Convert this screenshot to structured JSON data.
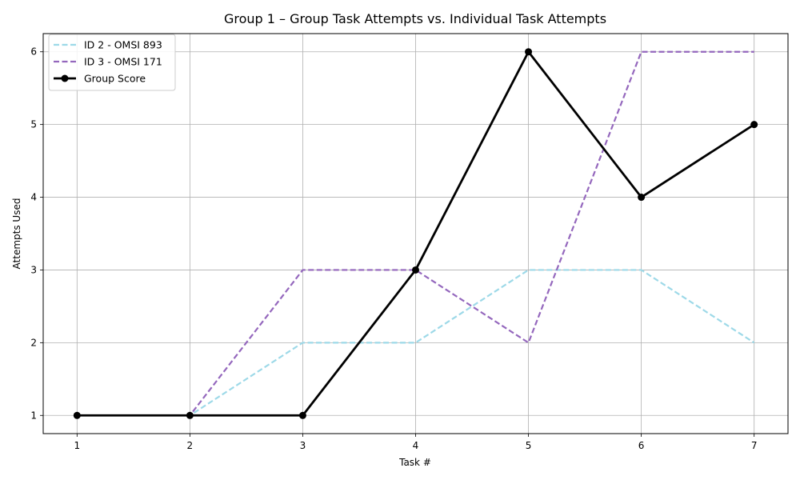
{
  "chart_data": {
    "type": "line",
    "title": "Group 1 – Group Task Attempts vs. Individual Task Attempts",
    "xlabel": "Task #",
    "ylabel": "Attempts Used",
    "x": [
      1,
      2,
      3,
      4,
      5,
      6,
      7
    ],
    "xlim": [
      0.7,
      7.3
    ],
    "ylim": [
      0.75,
      6.25
    ],
    "xticks": [
      1,
      2,
      3,
      4,
      5,
      6,
      7
    ],
    "yticks": [
      1,
      2,
      3,
      4,
      5,
      6
    ],
    "grid": true,
    "legend_position": "upper-left",
    "series": [
      {
        "name": "ID 2 - OMSI 893",
        "values": [
          1,
          1,
          2,
          2,
          3,
          3,
          2
        ],
        "color": "#9dd9e8",
        "style": "dashed",
        "marker": "none"
      },
      {
        "name": "ID 3 - OMSI 171",
        "values": [
          1,
          1,
          3,
          3,
          2,
          6,
          6
        ],
        "color": "#9467bd",
        "style": "dashed",
        "marker": "none"
      },
      {
        "name": "Group Score",
        "values": [
          1,
          1,
          1,
          3,
          6,
          4,
          5
        ],
        "color": "#000000",
        "style": "solid",
        "marker": "circle"
      }
    ]
  }
}
